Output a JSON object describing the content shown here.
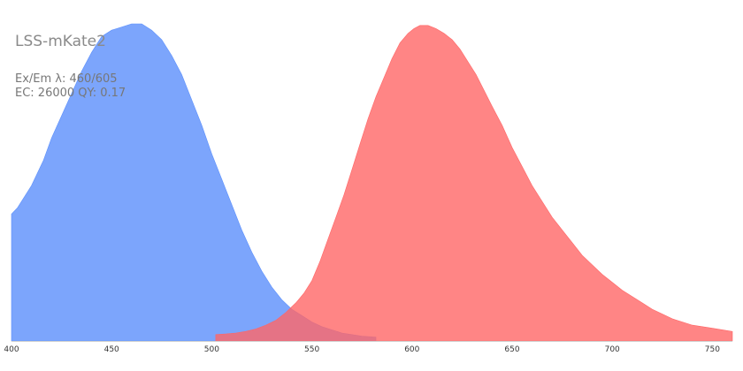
{
  "chart_data": {
    "type": "area",
    "title": "LSS-mKate2",
    "annotations": [
      "Ex/Em λ: 460/605",
      "EC: 26000  QY: 0.17"
    ],
    "xlabel": "",
    "ylabel": "",
    "xlim": [
      400,
      760
    ],
    "ylim": [
      0,
      1
    ],
    "x_ticks": [
      400,
      450,
      500,
      550,
      600,
      650,
      700,
      750
    ],
    "grid": false,
    "legend": "none",
    "series": [
      {
        "role": "excitation",
        "color": "#5b8ffb",
        "points": [
          [
            400,
            0.4
          ],
          [
            403,
            0.42
          ],
          [
            406,
            0.45
          ],
          [
            410,
            0.49
          ],
          [
            413,
            0.53
          ],
          [
            416,
            0.57
          ],
          [
            420,
            0.64
          ],
          [
            425,
            0.71
          ],
          [
            430,
            0.78
          ],
          [
            435,
            0.85
          ],
          [
            440,
            0.91
          ],
          [
            445,
            0.96
          ],
          [
            450,
            0.98
          ],
          [
            455,
            0.99
          ],
          [
            460,
            1.0
          ],
          [
            465,
            1.0
          ],
          [
            470,
            0.98
          ],
          [
            475,
            0.95
          ],
          [
            480,
            0.9
          ],
          [
            485,
            0.84
          ],
          [
            490,
            0.76
          ],
          [
            495,
            0.68
          ],
          [
            500,
            0.59
          ],
          [
            505,
            0.51
          ],
          [
            510,
            0.43
          ],
          [
            515,
            0.35
          ],
          [
            520,
            0.28
          ],
          [
            525,
            0.22
          ],
          [
            530,
            0.17
          ],
          [
            535,
            0.13
          ],
          [
            540,
            0.1
          ],
          [
            545,
            0.08
          ],
          [
            550,
            0.06
          ],
          [
            555,
            0.045
          ],
          [
            560,
            0.035
          ],
          [
            565,
            0.025
          ],
          [
            570,
            0.02
          ],
          [
            575,
            0.015
          ],
          [
            582,
            0.012
          ]
        ]
      },
      {
        "role": "emission",
        "color": "#ff6666",
        "points": [
          [
            502,
            0.02
          ],
          [
            507,
            0.022
          ],
          [
            512,
            0.025
          ],
          [
            517,
            0.03
          ],
          [
            522,
            0.038
          ],
          [
            527,
            0.05
          ],
          [
            532,
            0.065
          ],
          [
            537,
            0.09
          ],
          [
            542,
            0.12
          ],
          [
            546,
            0.15
          ],
          [
            550,
            0.19
          ],
          [
            554,
            0.25
          ],
          [
            558,
            0.32
          ],
          [
            562,
            0.39
          ],
          [
            566,
            0.46
          ],
          [
            570,
            0.54
          ],
          [
            574,
            0.62
          ],
          [
            578,
            0.7
          ],
          [
            582,
            0.77
          ],
          [
            586,
            0.83
          ],
          [
            590,
            0.89
          ],
          [
            594,
            0.94
          ],
          [
            598,
            0.97
          ],
          [
            601,
            0.985
          ],
          [
            604,
            0.995
          ],
          [
            608,
            0.995
          ],
          [
            612,
            0.985
          ],
          [
            616,
            0.97
          ],
          [
            620,
            0.95
          ],
          [
            624,
            0.92
          ],
          [
            628,
            0.88
          ],
          [
            632,
            0.84
          ],
          [
            636,
            0.79
          ],
          [
            640,
            0.74
          ],
          [
            645,
            0.68
          ],
          [
            650,
            0.61
          ],
          [
            655,
            0.55
          ],
          [
            660,
            0.49
          ],
          [
            665,
            0.44
          ],
          [
            670,
            0.39
          ],
          [
            675,
            0.35
          ],
          [
            680,
            0.31
          ],
          [
            685,
            0.27
          ],
          [
            690,
            0.24
          ],
          [
            695,
            0.21
          ],
          [
            700,
            0.185
          ],
          [
            705,
            0.16
          ],
          [
            710,
            0.14
          ],
          [
            715,
            0.12
          ],
          [
            720,
            0.1
          ],
          [
            725,
            0.085
          ],
          [
            730,
            0.07
          ],
          [
            735,
            0.06
          ],
          [
            740,
            0.05
          ],
          [
            745,
            0.045
          ],
          [
            750,
            0.04
          ],
          [
            755,
            0.035
          ],
          [
            760,
            0.03
          ]
        ]
      }
    ]
  }
}
